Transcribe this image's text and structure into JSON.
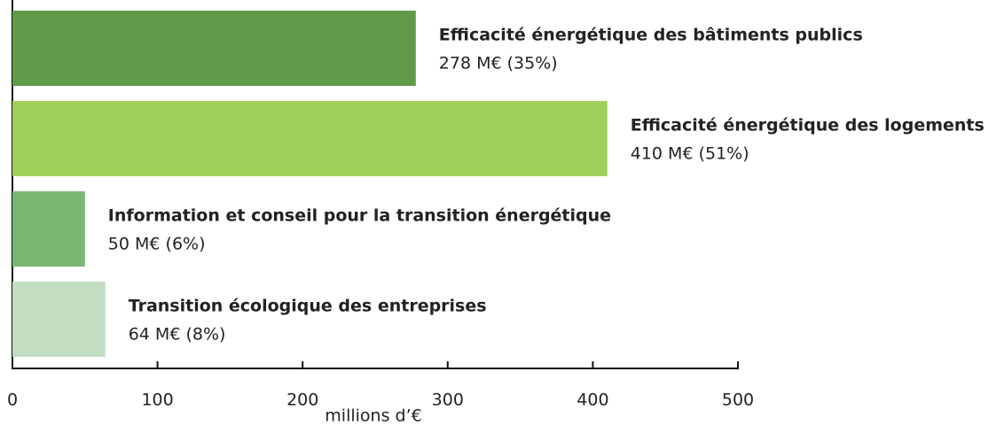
{
  "chart_data": {
    "type": "bar",
    "orientation": "horizontal",
    "categories": [
      "Efficacité énergétique des bâtiments publics",
      "Efficacité énergétique des logements",
      "Information et conseil pour la transition énergétique",
      "Transition écologique des entreprises"
    ],
    "values": [
      278,
      410,
      50,
      64
    ],
    "value_labels": [
      "278 M€ (35%)",
      "410 M€ (51%)",
      "50 M€ (6%)",
      "64 M€ (8%)"
    ],
    "colors": [
      "#5f9a48",
      "#a1d05a",
      "#79b872",
      "#c2ddc2"
    ],
    "xlim": [
      0,
      500
    ],
    "xticks": [
      0,
      100,
      200,
      300,
      400,
      500
    ],
    "xlabel": "millions d’€"
  }
}
